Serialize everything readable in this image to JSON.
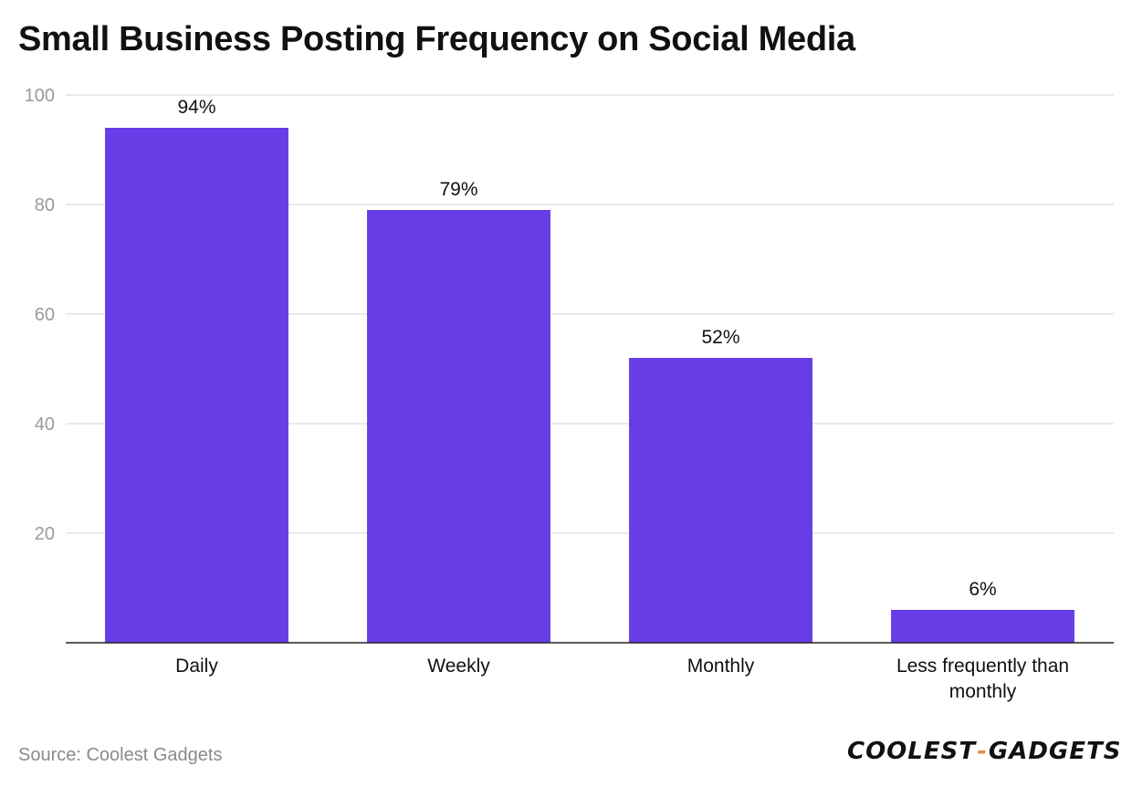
{
  "chart_data": {
    "type": "bar",
    "title": "Small Business Posting Frequency on Social Media",
    "categories": [
      "Daily",
      "Weekly",
      "Monthly",
      "Less frequently than monthly"
    ],
    "values": [
      94,
      79,
      52,
      6
    ],
    "data_labels": [
      "94%",
      "79%",
      "52%",
      "6%"
    ],
    "ylim": [
      0,
      100
    ],
    "yticks": [
      20,
      40,
      60,
      80,
      100
    ],
    "xlabel": "",
    "ylabel": "",
    "grid": true,
    "bar_color": "#673de6"
  },
  "footer": {
    "source": "Source: Coolest Gadgets",
    "logo_left": "COOLEST",
    "logo_sep": "-",
    "logo_right": "GADGETS"
  }
}
